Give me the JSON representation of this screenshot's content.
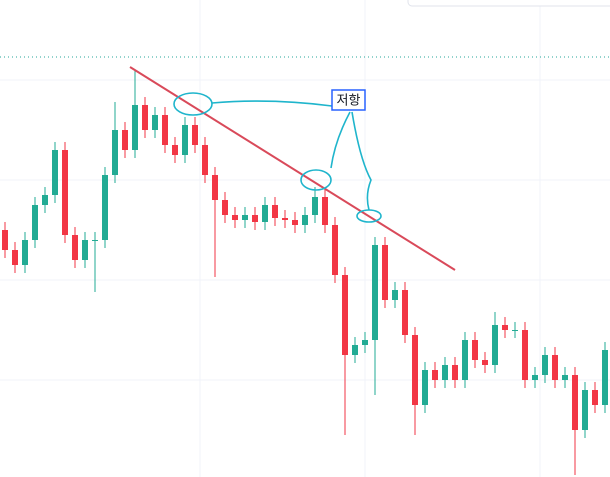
{
  "chart_data": {
    "type": "candlestick",
    "annotation": "저항",
    "up_color": "#22ab94",
    "down_color": "#f23645",
    "ylim": [
      0,
      477
    ],
    "open": [
      247,
      227,
      212,
      237,
      272,
      282,
      327,
      242,
      217,
      237,
      237,
      302,
      347,
      327,
      372,
      347,
      362,
      332,
      322,
      352,
      332,
      302,
      277,
      262,
      257,
      262,
      255,
      272,
      259,
      257,
      252,
      262,
      280,
      252,
      202,
      122,
      132,
      137,
      232,
      177,
      187,
      142,
      72,
      107,
      97,
      112,
      97,
      137,
      117,
      112,
      152,
      147,
      147,
      97,
      102,
      122,
      97,
      102,
      47,
      87,
      72
    ],
    "high": [
      255,
      235,
      245,
      280,
      290,
      335,
      335,
      250,
      245,
      245,
      310,
      375,
      355,
      407,
      380,
      370,
      370,
      340,
      360,
      360,
      340,
      310,
      285,
      270,
      270,
      270,
      280,
      280,
      267,
      265,
      270,
      290,
      288,
      260,
      210,
      140,
      145,
      240,
      240,
      195,
      195,
      150,
      115,
      115,
      120,
      120,
      145,
      145,
      125,
      165,
      160,
      155,
      155,
      110,
      130,
      130,
      110,
      110,
      95,
      95,
      135
    ],
    "low": [
      219,
      204,
      204,
      229,
      264,
      274,
      234,
      209,
      209,
      185,
      229,
      294,
      319,
      319,
      339,
      339,
      324,
      314,
      314,
      324,
      294,
      200,
      254,
      249,
      249,
      247,
      247,
      251,
      249,
      244,
      244,
      254,
      244,
      194,
      42,
      114,
      124,
      82,
      169,
      169,
      134,
      42,
      64,
      89,
      89,
      89,
      89,
      109,
      104,
      104,
      139,
      139,
      89,
      89,
      94,
      89,
      89,
      2,
      39,
      64,
      64
    ],
    "close": [
      227,
      212,
      237,
      272,
      282,
      327,
      242,
      217,
      237,
      237,
      302,
      347,
      327,
      372,
      347,
      362,
      332,
      322,
      352,
      332,
      302,
      277,
      262,
      257,
      262,
      255,
      272,
      259,
      257,
      252,
      262,
      280,
      252,
      202,
      122,
      132,
      137,
      232,
      177,
      187,
      142,
      72,
      107,
      97,
      112,
      97,
      137,
      117,
      112,
      152,
      147,
      147,
      97,
      102,
      122,
      97,
      102,
      47,
      87,
      72,
      127
    ]
  }
}
